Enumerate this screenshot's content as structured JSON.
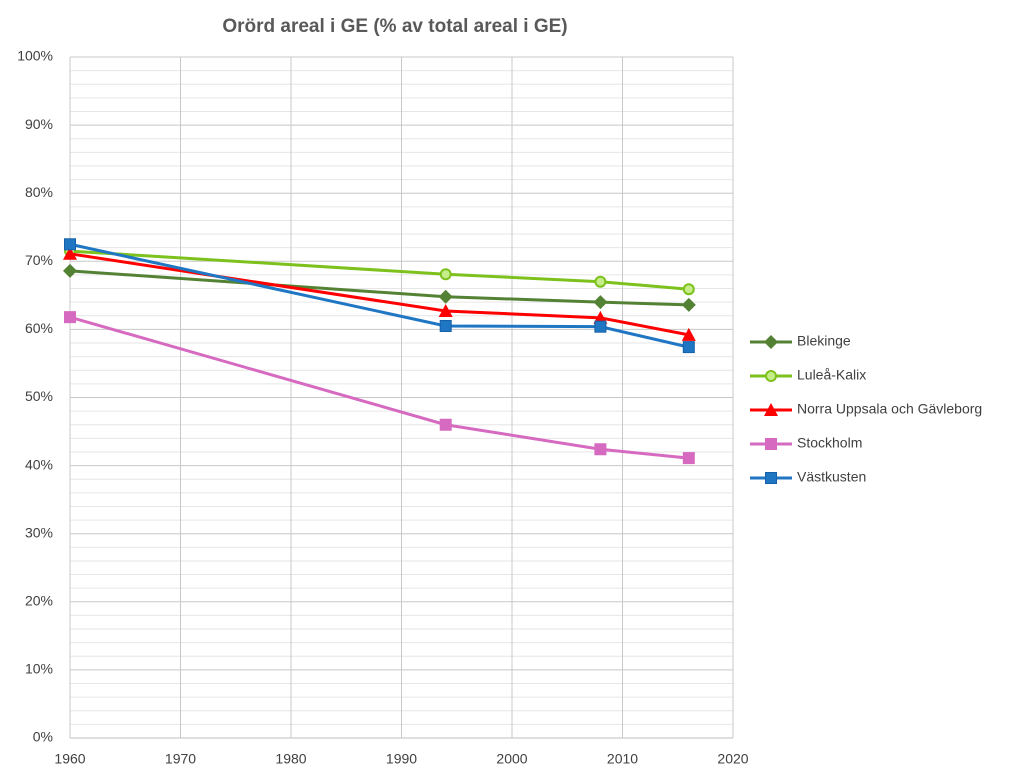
{
  "chart_data": {
    "type": "line",
    "title": "Orörd areal i GE (% av total areal i GE)",
    "x": [
      1960,
      1994,
      2008,
      2016
    ],
    "series": [
      {
        "name": "Blekinge",
        "color": "#548235",
        "marker": "diamond",
        "values": [
          68.6,
          64.8,
          64.0,
          63.6
        ]
      },
      {
        "name": "Luleå-Kalix",
        "color": "#7dc11d",
        "marker": "circle",
        "values": [
          71.5,
          68.1,
          67.0,
          65.9
        ]
      },
      {
        "name": "Norra Uppsala och Gävleborg",
        "color": "#ff0000",
        "marker": "triangle",
        "values": [
          71.1,
          62.7,
          61.7,
          59.2
        ]
      },
      {
        "name": "Stockholm",
        "color": "#d66ac0",
        "marker": "square",
        "values": [
          61.8,
          46.0,
          42.4,
          41.1
        ]
      },
      {
        "name": "Västkusten",
        "color": "#1f77c4",
        "marker": "square",
        "values": [
          72.5,
          60.5,
          60.4,
          57.4
        ]
      }
    ],
    "xlim": [
      1960,
      2020
    ],
    "xticks": [
      1960,
      1970,
      1980,
      1990,
      2000,
      2010,
      2020
    ],
    "ylim": [
      0,
      100
    ],
    "yticks": [
      {
        "value": 0,
        "label": "0%"
      },
      {
        "value": 10,
        "label": "10%"
      },
      {
        "value": 20,
        "label": "20%"
      },
      {
        "value": 30,
        "label": "30%"
      },
      {
        "value": 40,
        "label": "40%"
      },
      {
        "value": 50,
        "label": "50%"
      },
      {
        "value": 60,
        "label": "60%"
      },
      {
        "value": 70,
        "label": "70%"
      },
      {
        "value": 80,
        "label": "80%"
      },
      {
        "value": 90,
        "label": "90%"
      },
      {
        "value": 100,
        "label": "100%"
      }
    ],
    "y_minor_ticks": [
      2,
      4,
      6,
      8,
      12,
      14,
      16,
      18,
      22,
      24,
      26,
      28,
      32,
      34,
      36,
      38,
      42,
      44,
      46,
      48,
      52,
      54,
      56,
      58,
      62,
      64,
      66,
      68,
      72,
      74,
      76,
      78,
      82,
      84,
      86,
      88,
      92,
      94,
      96,
      98
    ],
    "grid": true,
    "legend": "right"
  }
}
